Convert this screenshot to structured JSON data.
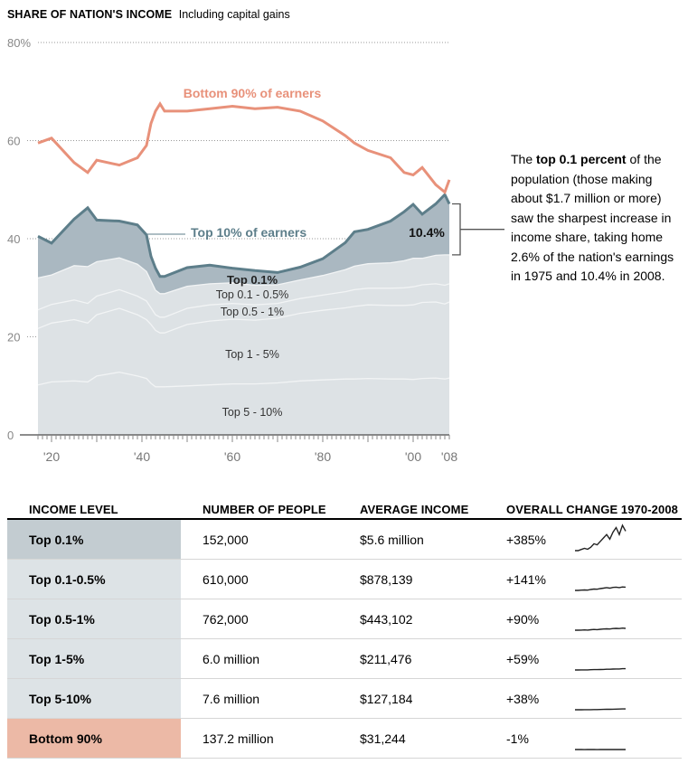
{
  "header": {
    "title": "SHARE OF NATION'S INCOME",
    "subtitle": "Including capital gains"
  },
  "note": {
    "bold": "top 0.1 percent",
    "before": "The ",
    "after": " of the population (those making about $1.7 million or more) saw the sharpest increase in income share, taking home 2.6% of the nation's earnings in 1975 and 10.4% in 2008."
  },
  "chart_data": {
    "type": "area",
    "title": "SHARE OF NATION'S INCOME",
    "subtitle": "Including capital gains",
    "ylim": [
      0,
      80
    ],
    "yticks": [
      0,
      20,
      40,
      60,
      80
    ],
    "ytick_labels": [
      "0",
      "20",
      "40",
      "60",
      "80%"
    ],
    "xlim": [
      1917,
      2008
    ],
    "xticks": [
      1920,
      1940,
      1960,
      1980,
      2000,
      2008
    ],
    "xtick_labels": [
      "'20",
      "'40",
      "'60",
      "'80",
      "'00",
      "'08"
    ],
    "colors": {
      "bottom90": "#e8917a",
      "top10_band": "#aab8c1",
      "top10_line": "#5d7e8a",
      "stack_fill": "#dde2e5",
      "stack_line": "#f2f4f5",
      "grid": "#999999"
    },
    "x": [
      1917,
      1920,
      1925,
      1928,
      1930,
      1935,
      1939,
      1941,
      1942,
      1943,
      1944,
      1945,
      1950,
      1955,
      1960,
      1965,
      1970,
      1975,
      1980,
      1985,
      1987,
      1990,
      1995,
      1998,
      2000,
      2002,
      2005,
      2007,
      2008
    ],
    "series": [
      {
        "key": "top0_1",
        "name": "Top 0.1%",
        "values": [
          8.5,
          6.5,
          9.5,
          12.0,
          8.5,
          7.5,
          8.0,
          7.5,
          5.0,
          4.5,
          3.5,
          3.5,
          3.8,
          3.8,
          3.0,
          3.0,
          2.5,
          2.6,
          3.4,
          5.5,
          7.0,
          7.0,
          8.5,
          10.0,
          11.0,
          9.0,
          10.5,
          12.3,
          10.4
        ]
      },
      {
        "key": "top0_1_0_5",
        "name": "Top 0.1 - 0.5%",
        "values": [
          6.5,
          6.0,
          7.0,
          7.5,
          7.0,
          6.5,
          6.5,
          6.0,
          5.5,
          5.0,
          4.8,
          4.8,
          4.5,
          4.3,
          4.2,
          4.0,
          3.8,
          3.8,
          4.0,
          4.5,
          4.8,
          5.0,
          5.2,
          5.5,
          5.8,
          5.4,
          5.8,
          6.2,
          5.9
        ]
      },
      {
        "key": "top0_5_1",
        "name": "Top 0.5 - 1%",
        "values": [
          3.8,
          3.8,
          4.0,
          4.0,
          3.8,
          3.8,
          3.8,
          3.8,
          3.4,
          3.2,
          3.2,
          3.2,
          3.3,
          3.3,
          3.2,
          3.1,
          3.0,
          3.0,
          3.1,
          3.3,
          3.4,
          3.4,
          3.5,
          3.6,
          3.7,
          3.6,
          3.7,
          3.8,
          3.7
        ]
      },
      {
        "key": "top1_5",
        "name": "Top 1 - 5%",
        "values": [
          11.5,
          12.0,
          12.5,
          12.0,
          12.5,
          13.0,
          12.5,
          12.0,
          12.0,
          11.5,
          11.0,
          11.0,
          12.5,
          13.0,
          13.2,
          13.0,
          13.2,
          13.8,
          14.2,
          14.5,
          14.8,
          15.0,
          15.0,
          15.0,
          15.2,
          15.5,
          15.5,
          15.3,
          15.5
        ]
      },
      {
        "key": "top5_10",
        "name": "Top 5 - 10%",
        "values": [
          10.2,
          10.8,
          11.0,
          10.8,
          12.0,
          12.8,
          12.0,
          11.5,
          10.5,
          9.8,
          9.8,
          9.8,
          10.0,
          10.2,
          10.4,
          10.4,
          10.6,
          11.0,
          11.2,
          11.4,
          11.4,
          11.5,
          11.4,
          11.4,
          11.3,
          11.5,
          11.6,
          11.4,
          11.6
        ]
      },
      {
        "key": "bottom90",
        "name": "Bottom 90% of earners",
        "values": [
          59.5,
          60.5,
          55.5,
          53.5,
          56.0,
          55.0,
          56.5,
          59.0,
          63.5,
          66.0,
          67.5,
          66.0,
          66.0,
          66.5,
          67.0,
          66.5,
          66.8,
          66.0,
          64.0,
          61.0,
          59.5,
          58.0,
          56.5,
          53.5,
          53.0,
          54.5,
          51.0,
          49.5,
          52.0
        ]
      }
    ],
    "annotations": {
      "bottom90_label": "Bottom 90% of earners",
      "top10_label": "Top 10% of earners",
      "top0_1_label": "Top 0.1%",
      "top0_1_0_5_label": "Top 0.1 - 0.5%",
      "top0_5_1_label": "Top 0.5 - 1%",
      "top1_5_label": "Top 1 - 5%",
      "top5_10_label": "Top 5 - 10%",
      "callout_value": "10.4%"
    }
  },
  "table": {
    "headers": [
      "INCOME LEVEL",
      "NUMBER OF PEOPLE",
      "AVERAGE INCOME",
      "OVERALL CHANGE 1970-2008"
    ],
    "rows": [
      {
        "level": "Top 0.1%",
        "people": "152,000",
        "income": "$5.6 million",
        "change": "+385%",
        "spark": [
          1.0,
          1.0,
          1.5,
          2.0,
          1.6,
          2.5,
          4.0,
          3.5,
          5.0,
          6.5,
          8.0,
          6.0,
          9.0,
          11.0,
          8.0,
          12.0,
          9.5
        ]
      },
      {
        "level": "Top 0.1-0.5%",
        "people": "610,000",
        "income": "$878,139",
        "change": "+141%",
        "spark": [
          1.0,
          1.0,
          1.1,
          1.2,
          1.1,
          1.4,
          1.6,
          1.5,
          1.8,
          2.0,
          2.2,
          2.0,
          2.3,
          2.4,
          2.2,
          2.5,
          2.4
        ]
      },
      {
        "level": "Top 0.5-1%",
        "people": "762,000",
        "income": "$443,102",
        "change": "+90%",
        "spark": [
          1.0,
          1.0,
          1.05,
          1.1,
          1.05,
          1.2,
          1.3,
          1.25,
          1.4,
          1.5,
          1.6,
          1.5,
          1.7,
          1.8,
          1.7,
          1.9,
          1.8
        ]
      },
      {
        "level": "Top 1-5%",
        "people": "6.0 million",
        "income": "$211,476",
        "change": "+59%",
        "spark": [
          1.0,
          1.0,
          1.02,
          1.05,
          1.03,
          1.1,
          1.15,
          1.15,
          1.2,
          1.25,
          1.3,
          1.3,
          1.4,
          1.45,
          1.45,
          1.55,
          1.55
        ]
      },
      {
        "level": "Top 5-10%",
        "people": "7.6 million",
        "income": "$127,184",
        "change": "+38%",
        "spark": [
          1.0,
          1.0,
          1.0,
          1.02,
          1.02,
          1.05,
          1.08,
          1.08,
          1.1,
          1.14,
          1.18,
          1.2,
          1.24,
          1.28,
          1.3,
          1.34,
          1.36
        ]
      },
      {
        "level": "Bottom 90%",
        "people": "137.2 million",
        "income": "$31,244",
        "change": "-1%",
        "spark": [
          1.0,
          1.0,
          0.99,
          0.98,
          0.99,
          1.0,
          0.99,
          0.98,
          1.0,
          1.01,
          1.0,
          0.99,
          1.0,
          1.0,
          0.99,
          0.99,
          0.99
        ]
      }
    ]
  }
}
